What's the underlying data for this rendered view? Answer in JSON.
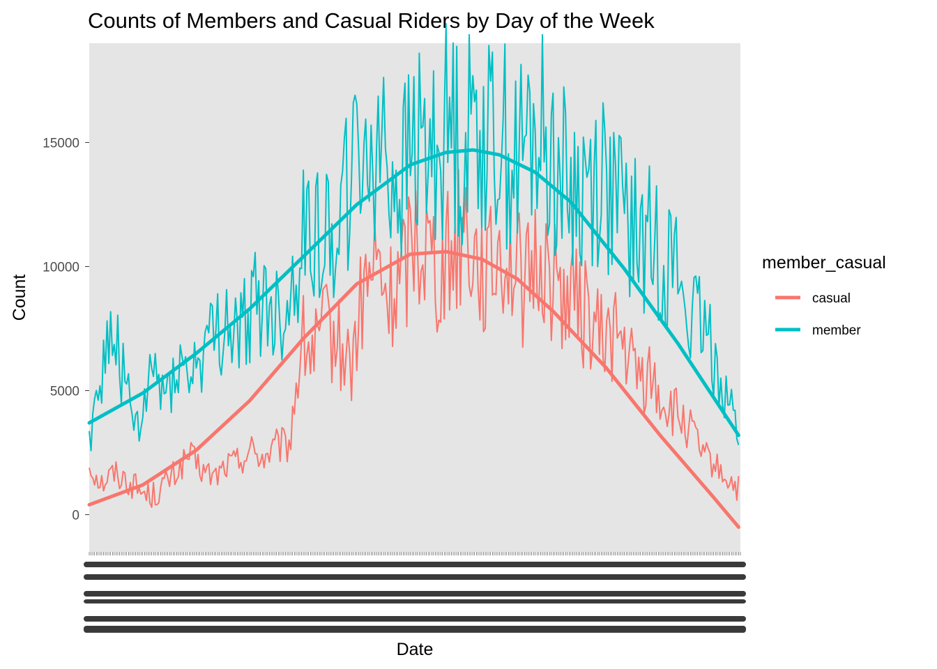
{
  "chart_data": {
    "type": "line",
    "title": "Counts of Members and Casual Riders by Day of the Week",
    "xlabel": "Date",
    "ylabel": "Count",
    "ylim": [
      -1500,
      19000
    ],
    "yticks": [
      0,
      5000,
      10000,
      15000
    ],
    "y_tick_labels": [
      "0",
      "5000",
      "10000",
      "15000"
    ],
    "x_range": [
      0,
      365
    ],
    "x_tick_labels_legible": false,
    "grid": false,
    "panel_background": "#e5e5e5",
    "legend": {
      "title": "member_casual",
      "position": "right",
      "entries": [
        "casual",
        "member"
      ]
    },
    "series": [
      {
        "name": "casual",
        "color": "#f8766d",
        "x": [
          0,
          7,
          14,
          21,
          28,
          35,
          42,
          49,
          56,
          63,
          70,
          77,
          84,
          91,
          98,
          105,
          112,
          119,
          126,
          133,
          140,
          147,
          154,
          161,
          168,
          175,
          182,
          189,
          196,
          203,
          210,
          217,
          224,
          231,
          238,
          245,
          252,
          259,
          266,
          273,
          280,
          287,
          294,
          301,
          308,
          315,
          322,
          329,
          336,
          343,
          350,
          357,
          364
        ],
        "values": [
          2000,
          1300,
          1700,
          1400,
          1000,
          700,
          1200,
          1700,
          2400,
          1800,
          1500,
          2000,
          2200,
          2600,
          2300,
          2700,
          2800,
          7000,
          6500,
          7500,
          6800,
          6000,
          9000,
          10000,
          8500,
          9500,
          11500,
          11000,
          10000,
          10500,
          12000,
          10500,
          9500,
          11000,
          10000,
          9000,
          10500,
          9500,
          9000,
          8500,
          8000,
          7000,
          7500,
          6500,
          5500,
          5500,
          4500,
          4000,
          3500,
          2500,
          2000,
          1500,
          1000
        ],
        "trend": {
          "x": [
            0,
            30,
            60,
            90,
            120,
            150,
            180,
            200,
            220,
            240,
            260,
            290,
            320,
            350,
            364
          ],
          "values": [
            400,
            1200,
            2600,
            4600,
            7100,
            9300,
            10500,
            10600,
            10300,
            9500,
            8200,
            5900,
            3200,
            700,
            -500
          ]
        }
      },
      {
        "name": "member",
        "color": "#00bfc4",
        "x": [
          0,
          7,
          14,
          21,
          28,
          35,
          42,
          49,
          56,
          63,
          70,
          77,
          84,
          91,
          98,
          105,
          112,
          119,
          126,
          133,
          140,
          147,
          154,
          161,
          168,
          175,
          182,
          189,
          196,
          203,
          210,
          217,
          224,
          231,
          238,
          245,
          252,
          259,
          266,
          273,
          280,
          287,
          294,
          301,
          308,
          315,
          322,
          329,
          336,
          343,
          350,
          357,
          364
        ],
        "values": [
          3200,
          5800,
          7500,
          4800,
          3000,
          6000,
          4800,
          6200,
          5500,
          6500,
          7000,
          7800,
          7000,
          8500,
          8500,
          8000,
          8500,
          11000,
          12000,
          11000,
          12500,
          13500,
          14500,
          15500,
          14000,
          13500,
          15000,
          14500,
          15000,
          16000,
          14500,
          16500,
          15000,
          15500,
          14000,
          15000,
          15500,
          14500,
          13500,
          13000,
          13500,
          14000,
          12500,
          12000,
          11000,
          11000,
          10500,
          10000,
          8000,
          7500,
          6500,
          5000,
          3200
        ],
        "trend": {
          "x": [
            0,
            30,
            60,
            90,
            120,
            150,
            180,
            200,
            215,
            230,
            250,
            270,
            300,
            330,
            364
          ],
          "values": [
            3700,
            4900,
            6500,
            8300,
            10400,
            12500,
            14100,
            14600,
            14700,
            14500,
            13800,
            12600,
            9900,
            6900,
            3200
          ]
        }
      }
    ]
  }
}
